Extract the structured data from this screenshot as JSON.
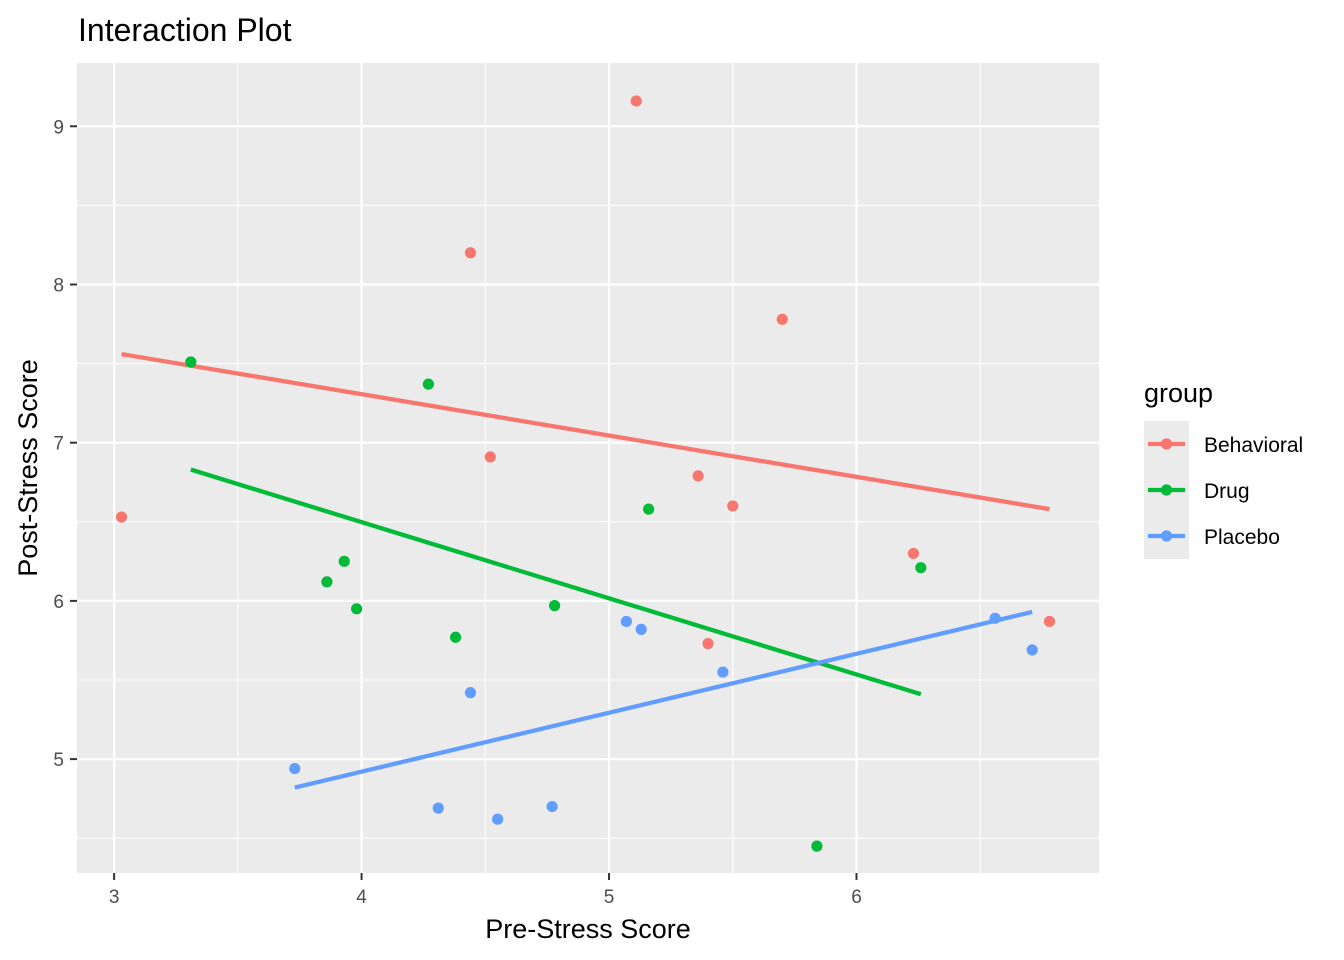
{
  "chart_data": {
    "type": "scatter",
    "title": "Interaction Plot",
    "xlabel": "Pre-Stress Score",
    "ylabel": "Post-Stress Score",
    "xlim": [
      2.85,
      6.98
    ],
    "ylim": [
      4.28,
      9.4
    ],
    "x_ticks": [
      3,
      4,
      5,
      6
    ],
    "y_ticks": [
      5,
      6,
      7,
      8,
      9
    ],
    "grid": true,
    "legend": {
      "title": "group",
      "position": "right"
    },
    "series": [
      {
        "name": "Behavioral",
        "color": "#F8766D",
        "points": [
          [
            3.03,
            6.53
          ],
          [
            4.44,
            8.2
          ],
          [
            4.52,
            6.91
          ],
          [
            5.11,
            9.16
          ],
          [
            5.36,
            6.79
          ],
          [
            5.4,
            5.73
          ],
          [
            5.5,
            6.6
          ],
          [
            5.7,
            7.78
          ],
          [
            6.23,
            6.3
          ],
          [
            6.78,
            5.87
          ]
        ],
        "fit": [
          [
            3.03,
            7.56
          ],
          [
            6.78,
            6.58
          ]
        ]
      },
      {
        "name": "Drug",
        "color": "#00BA38",
        "points": [
          [
            3.31,
            7.51
          ],
          [
            3.86,
            6.12
          ],
          [
            3.93,
            6.25
          ],
          [
            3.98,
            5.95
          ],
          [
            4.27,
            7.37
          ],
          [
            4.38,
            5.77
          ],
          [
            4.78,
            5.97
          ],
          [
            5.16,
            6.58
          ],
          [
            5.84,
            4.45
          ],
          [
            6.26,
            6.21
          ]
        ],
        "fit": [
          [
            3.31,
            6.83
          ],
          [
            6.26,
            5.41
          ]
        ]
      },
      {
        "name": "Placebo",
        "color": "#619CFF",
        "points": [
          [
            3.73,
            4.94
          ],
          [
            4.31,
            4.69
          ],
          [
            4.44,
            5.42
          ],
          [
            4.55,
            4.62
          ],
          [
            4.77,
            4.7
          ],
          [
            5.07,
            5.87
          ],
          [
            5.13,
            5.82
          ],
          [
            5.46,
            5.55
          ],
          [
            6.56,
            5.89
          ],
          [
            6.71,
            5.69
          ]
        ],
        "fit": [
          [
            3.73,
            4.82
          ],
          [
            6.71,
            5.93
          ]
        ]
      }
    ]
  }
}
